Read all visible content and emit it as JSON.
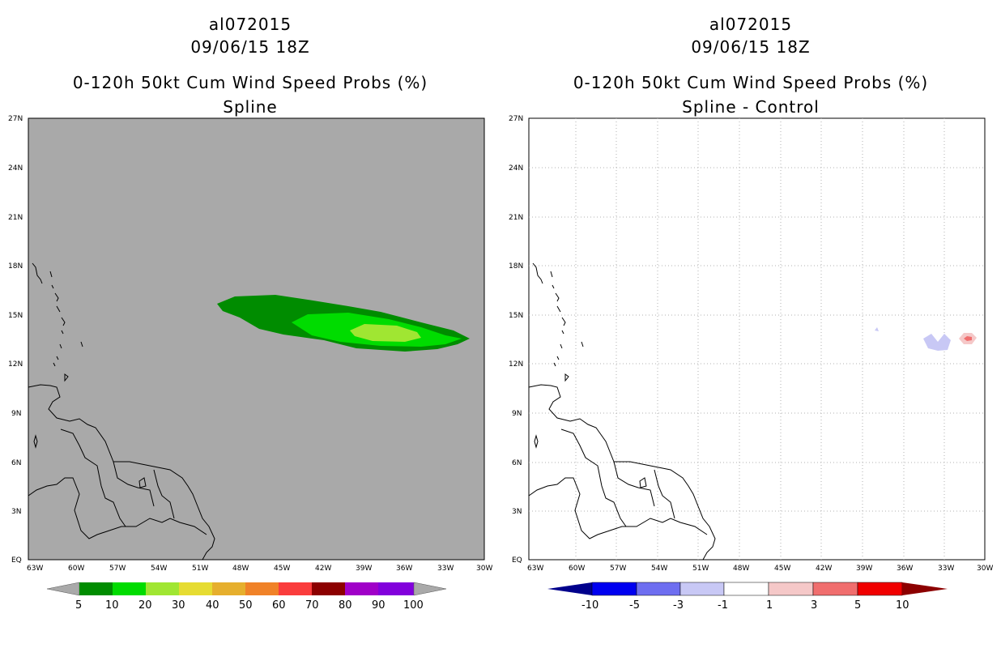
{
  "left": {
    "storm": "al072015",
    "datetime": "09/06/15 18Z",
    "product": "0-120h 50kt Cum Wind Speed Probs (%)",
    "subtitle": "Spline",
    "colorbar": {
      "labels": [
        "5",
        "10",
        "20",
        "30",
        "40",
        "50",
        "60",
        "70",
        "80",
        "90",
        "100"
      ],
      "colors": [
        "#008c00",
        "#00dc00",
        "#a0e632",
        "#e6dc32",
        "#e6af2d",
        "#f08228",
        "#fa3c3c",
        "#c00000",
        "#8c0000",
        "#a000c8",
        "#8200dc"
      ]
    },
    "background_color": "#a9a9a9"
  },
  "right": {
    "storm": "al072015",
    "datetime": "09/06/15 18Z",
    "product": "0-120h 50kt Cum Wind Speed Probs (%)",
    "subtitle": "Spline - Control",
    "colorbar": {
      "labels": [
        "-10",
        "-5",
        "-3",
        "-1",
        "1",
        "3",
        "5",
        "10"
      ],
      "colors": [
        "#00008c",
        "#0000f0",
        "#6e6ef0",
        "#c8c8f5",
        "#ffffff",
        "#f5c8c8",
        "#f06e6e",
        "#f00000",
        "#8c0000"
      ]
    },
    "background_color": "#ffffff"
  },
  "axes": {
    "lat_labels": [
      "27N",
      "24N",
      "21N",
      "18N",
      "15N",
      "12N",
      "9N",
      "6N",
      "3N",
      "EQ"
    ],
    "lon_labels": [
      "63W",
      "60W",
      "57W",
      "54W",
      "51W",
      "48W",
      "45W",
      "42W",
      "39W",
      "36W",
      "33W",
      "30W"
    ]
  }
}
